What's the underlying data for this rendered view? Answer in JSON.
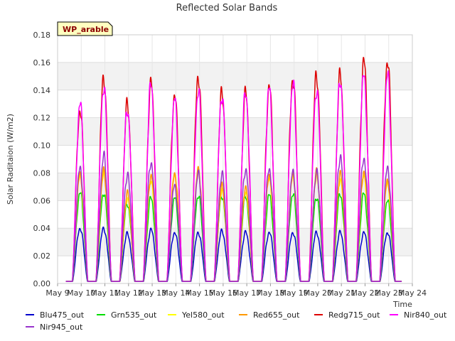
{
  "chart_data": {
    "type": "line",
    "title": "Reflected Solar Bands",
    "xlabel": "Time",
    "ylabel": "Solar Raditaion (W/m2)",
    "badge": "WP_arable",
    "ylim": [
      0,
      0.18
    ],
    "yticks": [
      0.0,
      0.02,
      0.04,
      0.06,
      0.08,
      0.1,
      0.12,
      0.14,
      0.16,
      0.18
    ],
    "ytick_labels": [
      "0.00",
      "0.02",
      "0.04",
      "0.06",
      "0.08",
      "0.10",
      "0.12",
      "0.14",
      "0.16",
      "0.18"
    ],
    "xlim": [
      9,
      24
    ],
    "xticks": [
      9,
      10,
      11,
      12,
      13,
      14,
      15,
      16,
      17,
      18,
      19,
      20,
      21,
      22,
      23,
      24
    ],
    "xtick_labels": [
      "May 9",
      "May 10",
      "May 11",
      "May 12",
      "May 13",
      "May 14",
      "May 15",
      "May 16",
      "May 17",
      "May 18",
      "May 19",
      "May 20",
      "May 21",
      "May 22",
      "May 23",
      "May 24"
    ],
    "grid": true,
    "legend_position": "bottom",
    "day_centers": [
      9.95,
      10.95,
      11.95,
      12.95,
      13.95,
      14.95,
      15.95,
      16.95,
      17.95,
      18.95,
      19.95,
      20.95,
      21.95,
      22.95
    ],
    "series": [
      {
        "name": "Blu475_out",
        "color": "#0000cc",
        "peaks": [
          0.04,
          0.04,
          0.036,
          0.039,
          0.037,
          0.037,
          0.038,
          0.037,
          0.037,
          0.037,
          0.037,
          0.037,
          0.037,
          0.037
        ]
      },
      {
        "name": "Grn535_out",
        "color": "#00dd00",
        "peaks": [
          0.066,
          0.066,
          0.058,
          0.062,
          0.062,
          0.064,
          0.064,
          0.063,
          0.064,
          0.065,
          0.063,
          0.065,
          0.065,
          0.06
        ]
      },
      {
        "name": "Yel580_out",
        "color": "#ffff00",
        "peaks": [
          0.077,
          0.08,
          0.062,
          0.075,
          0.078,
          0.08,
          0.068,
          0.067,
          0.076,
          0.077,
          0.078,
          0.076,
          0.079,
          0.072
        ]
      },
      {
        "name": "Red655_out",
        "color": "#ff9900",
        "peaks": [
          0.08,
          0.081,
          0.065,
          0.078,
          0.08,
          0.082,
          0.07,
          0.069,
          0.079,
          0.079,
          0.08,
          0.079,
          0.081,
          0.075
        ]
      },
      {
        "name": "Redg715_out",
        "color": "#dd0000",
        "peaks": [
          0.126,
          0.15,
          0.13,
          0.145,
          0.137,
          0.151,
          0.139,
          0.138,
          0.143,
          0.149,
          0.152,
          0.151,
          0.161,
          0.162
        ]
      },
      {
        "name": "Nir840_out",
        "color": "#ff00ff",
        "peaks": [
          0.13,
          0.143,
          0.127,
          0.145,
          0.133,
          0.14,
          0.137,
          0.139,
          0.141,
          0.145,
          0.141,
          0.148,
          0.151,
          0.151
        ]
      },
      {
        "name": "Nir945_out",
        "color": "#9933cc",
        "peaks": [
          0.083,
          0.092,
          0.079,
          0.088,
          0.071,
          0.079,
          0.079,
          0.083,
          0.083,
          0.08,
          0.08,
          0.092,
          0.091,
          0.083
        ]
      }
    ]
  }
}
